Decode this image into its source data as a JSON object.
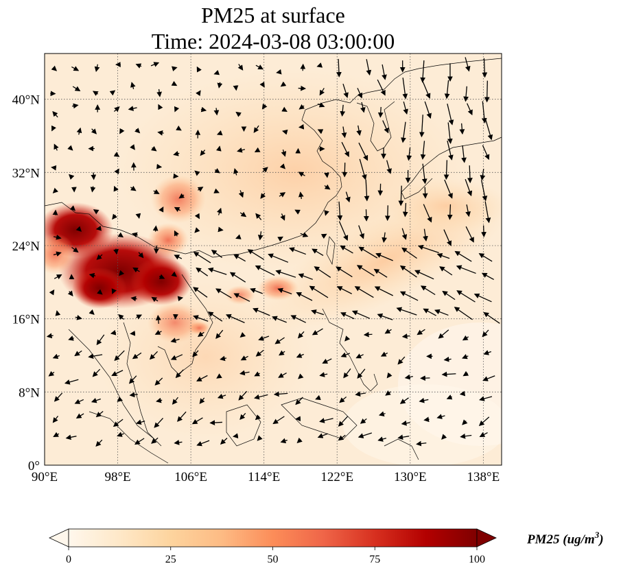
{
  "title": {
    "line1": "PM25 at surface",
    "line2": "Time: 2024-03-08 03:00:00"
  },
  "map": {
    "lon_range": [
      90,
      140
    ],
    "lat_range": [
      0,
      45
    ],
    "lon_ticks": [
      90,
      98,
      106,
      114,
      122,
      130,
      138
    ],
    "lon_tick_labels": [
      "90°E",
      "98°E",
      "106°E",
      "114°E",
      "122°E",
      "130°E",
      "138°E"
    ],
    "lat_ticks": [
      0,
      8,
      16,
      24,
      32,
      40
    ],
    "lat_tick_labels": [
      "0°",
      "8°N",
      "16°N",
      "24°N",
      "32°N",
      "40°N"
    ],
    "gridlines": "dotted",
    "field": "PM25 concentration (shaded)",
    "vectors": "wind arrows"
  },
  "colorbar": {
    "label": "PM25 (ug/m3)",
    "min": 0,
    "max": 100,
    "ticks": [
      0,
      25,
      50,
      75,
      100
    ],
    "tick_labels": [
      "0",
      "25",
      "50",
      "75",
      "100"
    ],
    "extend": "both",
    "colormap": "OrRd",
    "colors": [
      "#fff7ec",
      "#fee8c8",
      "#fdd49e",
      "#fdbb84",
      "#fc8d59",
      "#ef6548",
      "#d7301f",
      "#b30000",
      "#7f0000"
    ]
  }
}
